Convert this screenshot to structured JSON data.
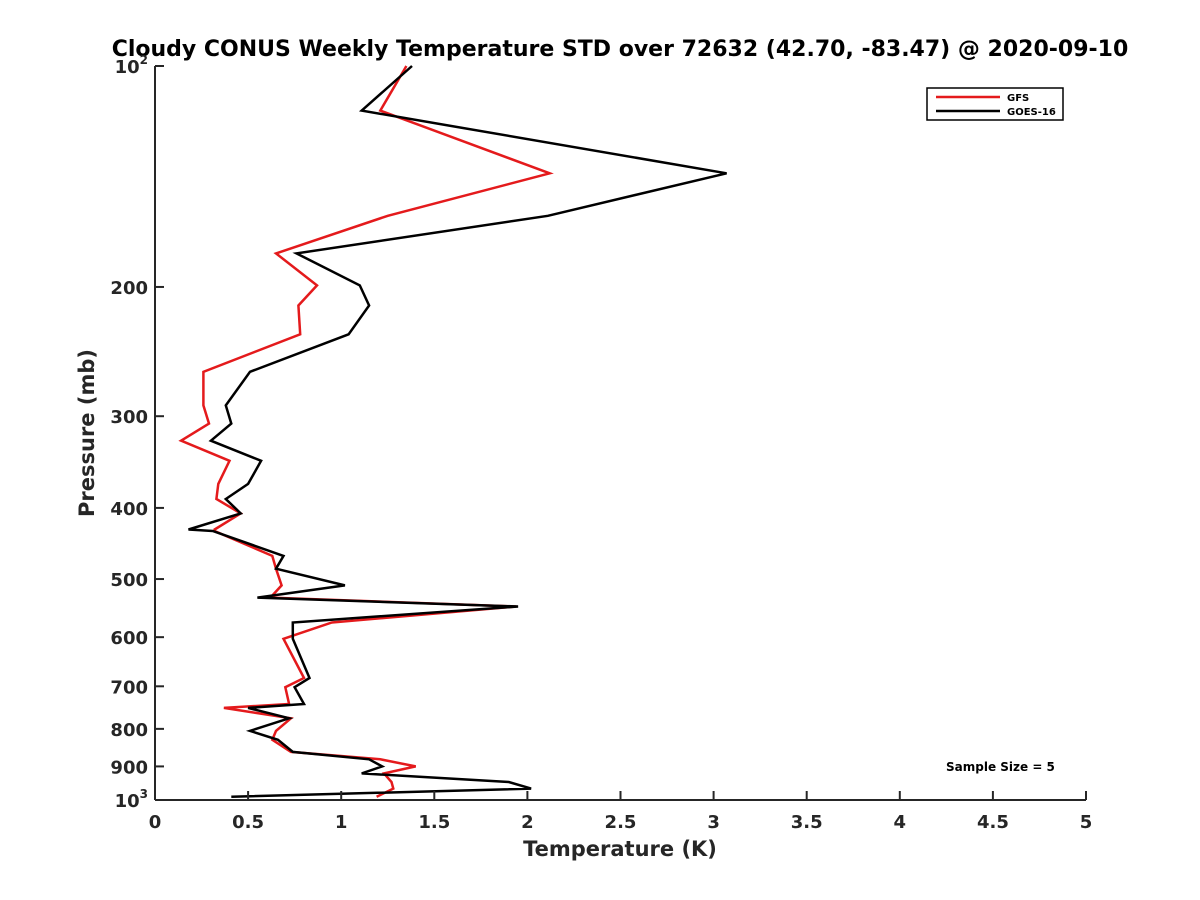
{
  "chart_data": {
    "type": "line",
    "title": "Cloudy CONUS Weekly Temperature STD over 72632 (42.70, -83.47) @ 2020-09-10",
    "xlabel": "Temperature (K)",
    "ylabel": "Pressure (mb)",
    "xlim": [
      0,
      5
    ],
    "ylim": [
      100,
      1000
    ],
    "y_scale": "log",
    "y_reversed": true,
    "grid": false,
    "legend_position": "top-right",
    "x_ticks": [
      "0",
      "0.5",
      "1",
      "1.5",
      "2",
      "2.5",
      "3",
      "3.5",
      "4",
      "4.5",
      "5"
    ],
    "y_ticks": [
      {
        "value": 100,
        "base": "10",
        "exp": "2"
      },
      {
        "value": 200,
        "label": "200"
      },
      {
        "value": 300,
        "label": "300"
      },
      {
        "value": 400,
        "label": "400"
      },
      {
        "value": 500,
        "label": "500"
      },
      {
        "value": 600,
        "label": "600"
      },
      {
        "value": 700,
        "label": "700"
      },
      {
        "value": 800,
        "label": "800"
      },
      {
        "value": 900,
        "label": "900"
      },
      {
        "value": 1000,
        "base": "10",
        "exp": "3"
      }
    ],
    "annotation": "Sample Size = 5",
    "series": [
      {
        "name": "GFS",
        "color": "#e41a1c",
        "x": [
          1.35,
          1.21,
          2.12,
          1.25,
          0.65,
          0.87,
          0.77,
          0.78,
          0.26,
          0.26,
          0.29,
          0.14,
          0.4,
          0.34,
          0.33,
          0.46,
          0.32,
          0.32,
          0.63,
          0.65,
          0.68,
          0.62,
          1.94,
          0.95,
          0.69,
          0.8,
          0.7,
          0.72,
          0.37,
          0.73,
          0.65,
          0.63,
          0.73,
          1.21,
          1.4,
          1.23,
          1.27,
          1.28,
          1.19
        ],
        "y": [
          100,
          115,
          140,
          160,
          180,
          199,
          212,
          232,
          261,
          290,
          307,
          324,
          345,
          371,
          389,
          407,
          428,
          430,
          465,
          484,
          510,
          530,
          545,
          573,
          603,
          682,
          702,
          740,
          749,
          774,
          805,
          828,
          860,
          880,
          900,
          920,
          945,
          965,
          990
        ]
      },
      {
        "name": "GOES-16",
        "color": "#000000",
        "x": [
          1.38,
          1.11,
          3.07,
          2.11,
          0.76,
          1.1,
          1.15,
          1.04,
          0.51,
          0.38,
          0.41,
          0.3,
          0.57,
          0.5,
          0.38,
          0.46,
          0.18,
          0.31,
          0.69,
          0.65,
          1.02,
          0.55,
          1.95,
          0.74,
          0.74,
          0.83,
          0.75,
          0.8,
          0.5,
          0.72,
          0.51,
          0.66,
          0.74,
          1.15,
          1.22,
          1.11,
          1.9,
          2.02,
          0.41
        ],
        "y": [
          100,
          115,
          140,
          160,
          180,
          199,
          212,
          232,
          261,
          290,
          307,
          324,
          345,
          371,
          389,
          407,
          428,
          430,
          465,
          484,
          510,
          530,
          545,
          573,
          603,
          682,
          702,
          740,
          749,
          774,
          805,
          828,
          860,
          880,
          900,
          920,
          945,
          965,
          990
        ]
      }
    ]
  }
}
